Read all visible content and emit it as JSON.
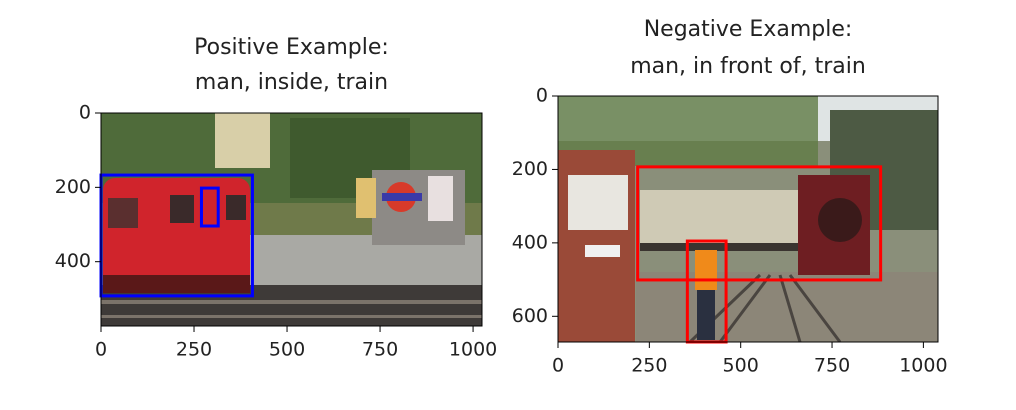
{
  "chart_data": [
    {
      "type": "image",
      "title": [
        "Positive Example:",
        "man, inside, train"
      ],
      "xlim": [
        0,
        1024
      ],
      "ylim": [
        573,
        0
      ],
      "xticks": [
        0,
        250,
        500,
        750,
        1000
      ],
      "yticks": [
        0,
        200,
        400
      ],
      "boxes": [
        {
          "x": [
            0,
            407
          ],
          "y": [
            167,
            492
          ],
          "color": "#0000ff"
        },
        {
          "x": [
            270,
            315
          ],
          "y": [
            202,
            304
          ],
          "color": "#0000ff"
        }
      ]
    },
    {
      "type": "image",
      "title": [
        "Negative Example:",
        "man, in front of, train"
      ],
      "xlim": [
        0,
        1040
      ],
      "ylim": [
        670,
        0
      ],
      "xticks": [
        0,
        250,
        500,
        750,
        1000
      ],
      "yticks": [
        0,
        200,
        400,
        600
      ],
      "boxes": [
        {
          "x": [
            218,
            883
          ],
          "y": [
            193,
            501
          ],
          "color": "#ff0000"
        },
        {
          "x": [
            354,
            460
          ],
          "y": [
            395,
            670
          ],
          "color": "#ff0000"
        }
      ]
    }
  ]
}
